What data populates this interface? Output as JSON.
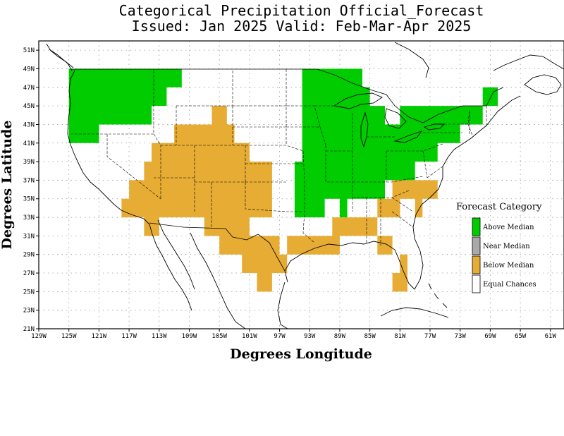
{
  "title_line1": "Categorical Precipitation Official_Forecast",
  "title_line2": "Issued: Jan 2025 Valid: Feb-Mar-Apr 2025",
  "axes": {
    "xlabel": "Degrees Longitude",
    "ylabel": "Degrees Latitude",
    "xlim": [
      -129,
      -61
    ],
    "ylim": [
      21,
      52
    ],
    "x_ticks": [
      {
        "value": -129,
        "label": "129W"
      },
      {
        "value": -125,
        "label": "125W"
      },
      {
        "value": -121,
        "label": "121W"
      },
      {
        "value": -117,
        "label": "117W"
      },
      {
        "value": -113,
        "label": "113W"
      },
      {
        "value": -109,
        "label": "109W"
      },
      {
        "value": -105,
        "label": "105W"
      },
      {
        "value": -101,
        "label": "101W"
      },
      {
        "value": -97,
        "label": "97W"
      },
      {
        "value": -93,
        "label": "93W"
      },
      {
        "value": -89,
        "label": "89W"
      },
      {
        "value": -85,
        "label": "85W"
      },
      {
        "value": -81,
        "label": "81W"
      },
      {
        "value": -77,
        "label": "77W"
      },
      {
        "value": -73,
        "label": "73W"
      },
      {
        "value": -69,
        "label": "69W"
      },
      {
        "value": -65,
        "label": "65W"
      },
      {
        "value": -61,
        "label": "61W"
      }
    ],
    "y_ticks": [
      {
        "value": 21,
        "label": "21N"
      },
      {
        "value": 23,
        "label": "23N"
      },
      {
        "value": 25,
        "label": "25N"
      },
      {
        "value": 27,
        "label": "27N"
      },
      {
        "value": 29,
        "label": "29N"
      },
      {
        "value": 31,
        "label": "31N"
      },
      {
        "value": 33,
        "label": "33N"
      },
      {
        "value": 35,
        "label": "35N"
      },
      {
        "value": 37,
        "label": "37N"
      },
      {
        "value": 39,
        "label": "39N"
      },
      {
        "value": 41,
        "label": "41N"
      },
      {
        "value": 43,
        "label": "43N"
      },
      {
        "value": 45,
        "label": "45N"
      },
      {
        "value": 47,
        "label": "47N"
      },
      {
        "value": 49,
        "label": "49N"
      },
      {
        "value": 51,
        "label": "51N"
      }
    ],
    "grid": true
  },
  "legend": {
    "title": "Forecast Category",
    "placement": "right",
    "items": [
      {
        "label": "Above Median",
        "color": "#00cc00"
      },
      {
        "label": "Near Median",
        "color": "#a9a9a9"
      },
      {
        "label": "Below Median",
        "color": "#e6ac33"
      },
      {
        "label": "Equal Chances",
        "color": "#ffffff"
      }
    ]
  },
  "chart_data": {
    "type": "heatmap",
    "cell_size_degrees": 2,
    "categories": [
      "Above Median",
      "Below Median"
    ],
    "regions": [
      {
        "category": "Above Median",
        "color": "#00cc00",
        "polygon": [
          [
            -125,
            41
          ],
          [
            -125,
            49
          ],
          [
            -110,
            49
          ],
          [
            -110,
            47
          ],
          [
            -112,
            47
          ],
          [
            -112,
            45
          ],
          [
            -114,
            45
          ],
          [
            -114,
            43
          ],
          [
            -121,
            43
          ],
          [
            -121,
            41
          ]
        ]
      },
      {
        "category": "Above Median",
        "color": "#00cc00",
        "polygon": [
          [
            -95,
            33
          ],
          [
            -95,
            39
          ],
          [
            -94,
            39
          ],
          [
            -94,
            49
          ],
          [
            -86,
            49
          ],
          [
            -86,
            47
          ],
          [
            -85,
            47
          ],
          [
            -85,
            45
          ],
          [
            -83,
            45
          ],
          [
            -83,
            43
          ],
          [
            -81,
            43
          ],
          [
            -81,
            45
          ],
          [
            -70,
            45
          ],
          [
            -70,
            47
          ],
          [
            -68,
            47
          ],
          [
            -68,
            45
          ],
          [
            -70,
            45
          ],
          [
            -70,
            43
          ],
          [
            -73,
            43
          ],
          [
            -73,
            41
          ],
          [
            -76,
            41
          ],
          [
            -76,
            39
          ],
          [
            -79,
            39
          ],
          [
            -79,
            37
          ],
          [
            -83,
            37
          ],
          [
            -83,
            35
          ],
          [
            -88,
            35
          ],
          [
            -88,
            33
          ],
          [
            -89,
            33
          ],
          [
            -89,
            35
          ],
          [
            -91,
            35
          ],
          [
            -91,
            33
          ]
        ]
      },
      {
        "category": "Below Median",
        "color": "#e6ac33",
        "polygon": [
          [
            -118,
            33
          ],
          [
            -118,
            35
          ],
          [
            -117,
            35
          ],
          [
            -117,
            37
          ],
          [
            -115,
            37
          ],
          [
            -115,
            39
          ],
          [
            -114,
            39
          ],
          [
            -114,
            41
          ],
          [
            -111,
            41
          ],
          [
            -111,
            43
          ],
          [
            -106,
            43
          ],
          [
            -106,
            45
          ],
          [
            -104,
            45
          ],
          [
            -104,
            43
          ],
          [
            -103,
            43
          ],
          [
            -103,
            41
          ],
          [
            -101,
            41
          ],
          [
            -101,
            39
          ],
          [
            -98,
            39
          ],
          [
            -98,
            33
          ],
          [
            -101,
            33
          ],
          [
            -101,
            31
          ],
          [
            -97,
            31
          ],
          [
            -97,
            29
          ],
          [
            -96,
            29
          ],
          [
            -96,
            27
          ],
          [
            -98,
            27
          ],
          [
            -98,
            25
          ],
          [
            -100,
            25
          ],
          [
            -100,
            27
          ],
          [
            -102,
            27
          ],
          [
            -102,
            29
          ],
          [
            -105,
            29
          ],
          [
            -105,
            31
          ],
          [
            -107,
            31
          ],
          [
            -107,
            33
          ],
          [
            -113,
            33
          ],
          [
            -113,
            31
          ],
          [
            -115,
            31
          ],
          [
            -115,
            33
          ]
        ]
      },
      {
        "category": "Below Median",
        "color": "#e6ac33",
        "polygon": [
          [
            -96,
            29
          ],
          [
            -96,
            31
          ],
          [
            -90,
            31
          ],
          [
            -90,
            33
          ],
          [
            -81,
            33
          ],
          [
            -81,
            35
          ],
          [
            -79,
            35
          ],
          [
            -79,
            33
          ],
          [
            -78,
            33
          ],
          [
            -78,
            35
          ],
          [
            -76,
            35
          ],
          [
            -76,
            37
          ],
          [
            -82,
            37
          ],
          [
            -82,
            35
          ],
          [
            -84,
            35
          ],
          [
            -84,
            33
          ],
          [
            -84,
            31
          ],
          [
            -82,
            31
          ],
          [
            -82,
            27
          ],
          [
            -81,
            27
          ],
          [
            -81,
            29
          ],
          [
            -80,
            29
          ],
          [
            -80,
            25
          ],
          [
            -82,
            25
          ],
          [
            -82,
            29
          ],
          [
            -84,
            29
          ],
          [
            -84,
            31
          ],
          [
            -89,
            31
          ],
          [
            -89,
            29
          ],
          [
            -96,
            29
          ]
        ]
      }
    ]
  }
}
